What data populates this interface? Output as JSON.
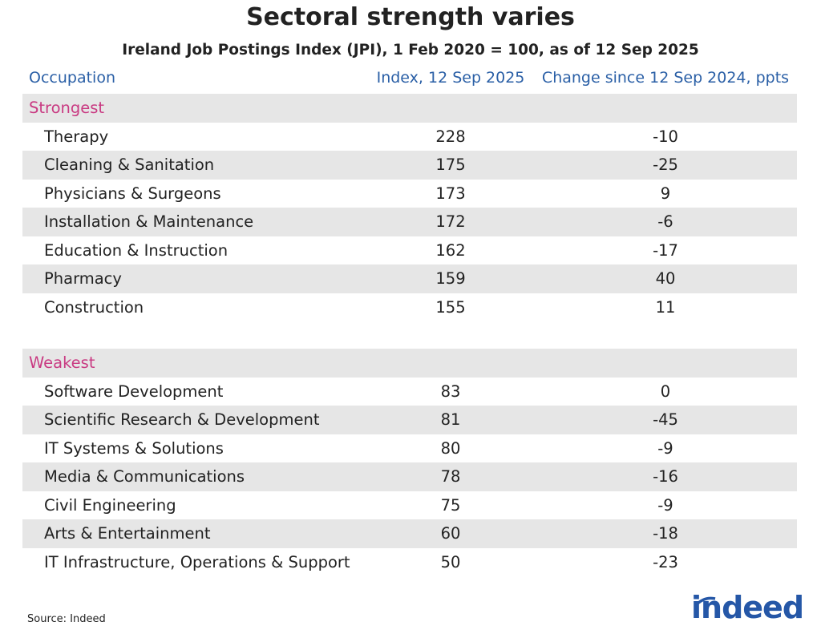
{
  "header": {
    "title": "Sectoral strength varies",
    "subtitle": "Ireland Job Postings Index (JPI), 1 Feb 2020 = 100, as of 12 Sep 2025"
  },
  "table": {
    "columns": [
      "Occupation",
      "Index, 12 Sep 2025",
      "Change since 12 Sep 2024, ppts"
    ],
    "sections": [
      {
        "name": "Strongest",
        "rows": [
          [
            "Therapy",
            228,
            -10
          ],
          [
            "Cleaning & Sanitation",
            175,
            -25
          ],
          [
            "Physicians & Surgeons",
            173,
            9
          ],
          [
            "Installation & Maintenance",
            172,
            -6
          ],
          [
            "Education & Instruction",
            162,
            -17
          ],
          [
            "Pharmacy",
            159,
            40
          ],
          [
            "Construction",
            155,
            11
          ]
        ]
      },
      {
        "name": "Weakest",
        "rows": [
          [
            "Software Development",
            83,
            0
          ],
          [
            "Scientific Research & Development",
            81,
            -45
          ],
          [
            "IT Systems & Solutions",
            80,
            -9
          ],
          [
            "Media & Communications",
            78,
            -16
          ],
          [
            "Civil Engineering",
            75,
            -9
          ],
          [
            "Arts & Entertainment",
            60,
            -18
          ],
          [
            "IT Infrastructure, Operations & Support",
            50,
            -23
          ]
        ]
      }
    ]
  },
  "footer": {
    "source": "Source: Indeed",
    "logo": "indeed"
  }
}
